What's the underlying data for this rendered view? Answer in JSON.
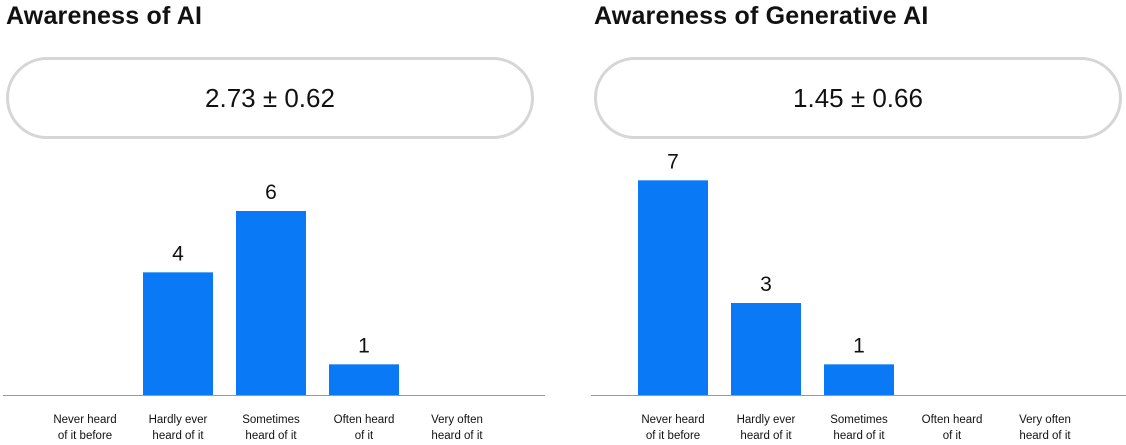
{
  "chart_data": [
    {
      "type": "bar",
      "title": "Awareness of AI",
      "summary": "2.73 ± 0.62",
      "categories": [
        [
          "Never heard",
          "of it before"
        ],
        [
          "Hardly ever",
          "heard of it"
        ],
        [
          "Sometimes",
          "heard of it"
        ],
        [
          "Often heard",
          "of it"
        ],
        [
          "Very often",
          "heard of it"
        ]
      ],
      "values": [
        0,
        4,
        6,
        1,
        0
      ],
      "data_labels": [
        "",
        "4",
        "6",
        "1",
        ""
      ],
      "ylim": [
        0,
        7.5
      ],
      "color": "#0a79f5",
      "grid": false,
      "legend": "none"
    },
    {
      "type": "bar",
      "title": "Awareness of Generative AI",
      "summary": "1.45 ± 0.66",
      "categories": [
        [
          "Never heard",
          "of it before"
        ],
        [
          "Hardly ever",
          "heard of it"
        ],
        [
          "Sometimes",
          "heard of it"
        ],
        [
          "Often heard",
          "of it"
        ],
        [
          "Very often",
          "heard of it"
        ]
      ],
      "values": [
        7,
        3,
        1,
        0,
        0
      ],
      "data_labels": [
        "7",
        "3",
        "1",
        "",
        ""
      ],
      "ylim": [
        0,
        7.5
      ],
      "color": "#0a79f5",
      "grid": false,
      "legend": "none"
    }
  ]
}
